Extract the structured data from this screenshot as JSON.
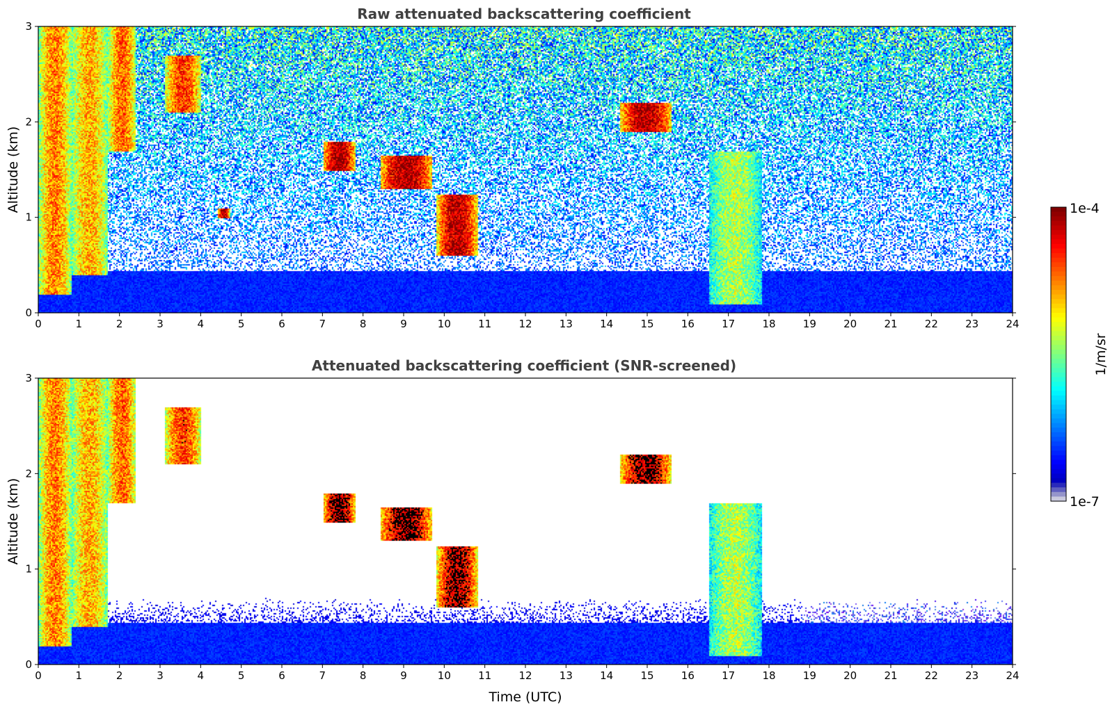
{
  "chart_data": [
    {
      "type": "heatmap",
      "title": "Raw attenuated backscattering coefficient",
      "xlabel": "",
      "ylabel": "Altitude (km)",
      "xlim": [
        0,
        24
      ],
      "ylim": [
        0,
        3
      ],
      "x_ticks": [
        "0",
        "1",
        "2",
        "3",
        "4",
        "5",
        "6",
        "7",
        "8",
        "9",
        "10",
        "11",
        "12",
        "13",
        "14",
        "15",
        "16",
        "17",
        "18",
        "19",
        "20",
        "21",
        "22",
        "23",
        "24"
      ],
      "y_ticks": [
        "0",
        "1",
        "2",
        "3"
      ],
      "screened": false,
      "cloud_layers": [
        {
          "t_start": 0.0,
          "t_end": 0.8,
          "alt_bottom": 0.2,
          "alt_top": 3.0,
          "level": 0.75
        },
        {
          "t_start": 0.8,
          "t_end": 1.7,
          "alt_bottom": 0.4,
          "alt_top": 3.0,
          "level": 0.7
        },
        {
          "t_start": 1.7,
          "t_end": 2.4,
          "alt_bottom": 1.7,
          "alt_top": 3.0,
          "level": 0.78
        },
        {
          "t_start": 3.1,
          "t_end": 4.0,
          "alt_bottom": 2.1,
          "alt_top": 2.7,
          "level": 0.82
        },
        {
          "t_start": 4.4,
          "t_end": 4.7,
          "alt_bottom": 1.0,
          "alt_top": 1.1,
          "level": 0.95
        },
        {
          "t_start": 7.0,
          "t_end": 7.8,
          "alt_bottom": 1.5,
          "alt_top": 1.8,
          "level": 0.97
        },
        {
          "t_start": 8.4,
          "t_end": 9.7,
          "alt_bottom": 1.3,
          "alt_top": 1.65,
          "level": 0.97
        },
        {
          "t_start": 9.8,
          "t_end": 10.8,
          "alt_bottom": 0.6,
          "alt_top": 1.25,
          "level": 0.95
        },
        {
          "t_start": 14.3,
          "t_end": 15.6,
          "alt_bottom": 1.9,
          "alt_top": 2.2,
          "level": 0.95
        },
        {
          "t_start": 16.5,
          "t_end": 17.8,
          "alt_bottom": 0.1,
          "alt_top": 1.7,
          "level": 0.55
        }
      ]
    },
    {
      "type": "heatmap",
      "title": "Attenuated backscattering coefficient (SNR-screened)",
      "xlabel": "Time (UTC)",
      "ylabel": "Altitude (km)",
      "xlim": [
        0,
        24
      ],
      "ylim": [
        0,
        3
      ],
      "x_ticks": [
        "0",
        "1",
        "2",
        "3",
        "4",
        "5",
        "6",
        "7",
        "8",
        "9",
        "10",
        "11",
        "12",
        "13",
        "14",
        "15",
        "16",
        "17",
        "18",
        "19",
        "20",
        "21",
        "22",
        "23",
        "24"
      ],
      "y_ticks": [
        "0",
        "1",
        "2",
        "3"
      ],
      "screened": true,
      "cloud_layers": [
        {
          "t_start": 0.0,
          "t_end": 0.8,
          "alt_bottom": 0.2,
          "alt_top": 3.0,
          "level": 0.75
        },
        {
          "t_start": 0.8,
          "t_end": 1.7,
          "alt_bottom": 0.4,
          "alt_top": 3.0,
          "level": 0.7
        },
        {
          "t_start": 1.7,
          "t_end": 2.4,
          "alt_bottom": 1.7,
          "alt_top": 3.0,
          "level": 0.78
        },
        {
          "t_start": 3.1,
          "t_end": 4.0,
          "alt_bottom": 2.1,
          "alt_top": 2.7,
          "level": 0.82
        },
        {
          "t_start": 7.0,
          "t_end": 7.8,
          "alt_bottom": 1.5,
          "alt_top": 1.8,
          "level": 0.97
        },
        {
          "t_start": 8.4,
          "t_end": 9.7,
          "alt_bottom": 1.3,
          "alt_top": 1.65,
          "level": 0.97
        },
        {
          "t_start": 9.8,
          "t_end": 10.8,
          "alt_bottom": 0.6,
          "alt_top": 1.25,
          "level": 0.95
        },
        {
          "t_start": 14.3,
          "t_end": 15.6,
          "alt_bottom": 1.9,
          "alt_top": 2.2,
          "level": 0.95
        },
        {
          "t_start": 16.5,
          "t_end": 17.8,
          "alt_bottom": 0.1,
          "alt_top": 1.7,
          "level": 0.55
        }
      ]
    }
  ],
  "colorbar": {
    "label": "1/m/sr",
    "max_label": "1e-4",
    "min_label": "1e-7",
    "range": [
      1e-07,
      0.0001
    ],
    "scale": "log",
    "colormap": "jet"
  }
}
